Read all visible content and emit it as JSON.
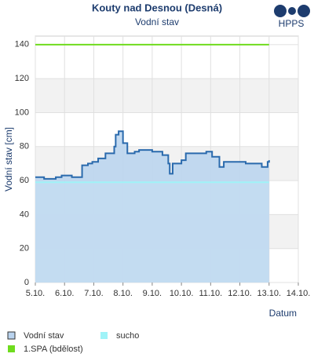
{
  "chart_data": {
    "type": "line",
    "title": "Kouty nad Desnou (Desná)",
    "subtitle": "Vodní stav",
    "logo": "HPPS",
    "y_label": "Vodní stav [cm]",
    "x_label": "Datum",
    "xlim": [
      5,
      14
    ],
    "xticks": [
      {
        "value": 5,
        "label": "5.10."
      },
      {
        "value": 6,
        "label": "6.10."
      },
      {
        "value": 7,
        "label": "7.10."
      },
      {
        "value": 8,
        "label": "8.10."
      },
      {
        "value": 9,
        "label": "9.10."
      },
      {
        "value": 10,
        "label": "10.10."
      },
      {
        "value": 11,
        "label": "11.10."
      },
      {
        "value": 12,
        "label": "12.10."
      },
      {
        "value": 13,
        "label": "13.10."
      },
      {
        "value": 14,
        "label": "14.10."
      }
    ],
    "ylim": [
      0,
      145
    ],
    "yticks": [
      0,
      20,
      40,
      60,
      80,
      100,
      120,
      140
    ],
    "grid": true,
    "step": true,
    "series": [
      {
        "name": "Vodní stav",
        "color": "#2a6aad",
        "fill": "#b9d3ee",
        "x": [
          5.0,
          5.3,
          5.7,
          5.9,
          6.25,
          6.5,
          6.6,
          6.8,
          6.95,
          7.15,
          7.4,
          7.7,
          7.75,
          7.85,
          8.0,
          8.15,
          8.4,
          8.55,
          9.0,
          9.35,
          9.55,
          9.6,
          9.7,
          10.0,
          10.15,
          10.65,
          10.85,
          11.05,
          11.3,
          11.45,
          11.85,
          12.2,
          12.55,
          12.75,
          12.95,
          13.0
        ],
        "values": [
          62,
          61,
          62,
          63,
          62,
          62,
          69,
          70,
          71,
          73,
          76,
          80,
          87,
          89,
          82,
          76,
          77,
          78,
          77,
          75,
          70,
          64,
          70,
          72,
          76,
          76,
          77,
          74,
          68,
          71,
          71,
          70,
          70,
          68,
          71,
          72
        ]
      },
      {
        "name": "sucho",
        "color": "#9ff3f8",
        "fill": "#c3dcf1",
        "x": [
          5,
          13
        ],
        "values": [
          59,
          59
        ]
      },
      {
        "name": "1.SPA (bdělost)",
        "color": "#6fdc1e",
        "x": [
          5,
          13
        ],
        "values": [
          140,
          140
        ]
      }
    ]
  }
}
